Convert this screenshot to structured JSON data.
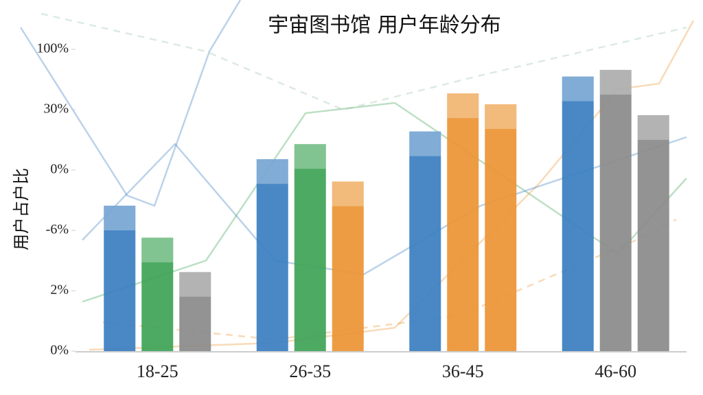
{
  "chart_data": {
    "type": "bar",
    "title": "宇宙图书馆 用户年龄分布",
    "y_label": "用户占户比",
    "categories": [
      "18-25",
      "26-35",
      "36-45",
      "46-60"
    ],
    "series": [
      {
        "colors": [
          "#3a7ec0",
          "#3a7ec0",
          "#3a7ec0",
          "#3a7ec0"
        ],
        "values": [
          2.41,
          3.18,
          3.64,
          4.55
        ]
      },
      {
        "colors": [
          "#3ea356",
          "#3ea356",
          "#ec9433",
          "#8a8a8a"
        ],
        "values": [
          1.88,
          3.43,
          4.27,
          4.66
        ]
      },
      {
        "colors": [
          "#8a8a8a",
          "#ec9433",
          "#ec9433",
          "#8a8a8a"
        ],
        "values": [
          1.31,
          2.81,
          4.09,
          3.91
        ]
      }
    ],
    "ylim": [
      0,
      5
    ],
    "yticks": [
      {
        "value": 0,
        "label": "0%"
      },
      {
        "value": 1,
        "label": "2%"
      },
      {
        "value": 2,
        "label": "-6%"
      },
      {
        "value": 3,
        "label": "0%"
      },
      {
        "value": 4,
        "label": "30%"
      },
      {
        "value": 5,
        "label": "100%"
      }
    ]
  }
}
